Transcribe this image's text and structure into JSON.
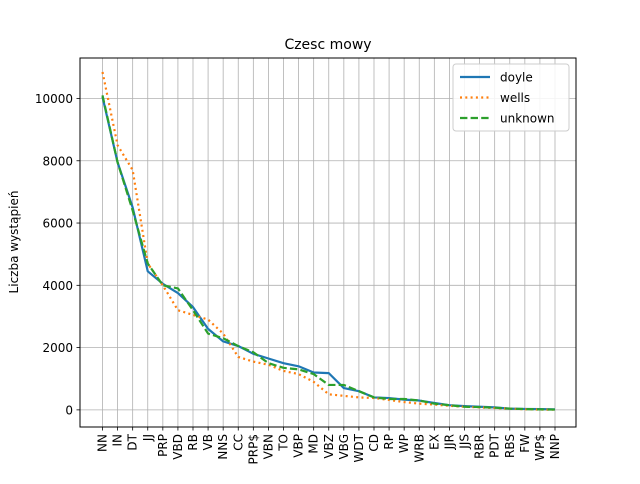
{
  "chart_data": {
    "type": "line",
    "title": "Czesc mowy",
    "xlabel": "",
    "ylabel": "Liczba wystąpień",
    "categories": [
      "NN",
      "IN",
      "DT",
      "JJ",
      "PRP",
      "VBD",
      "RB",
      "VB",
      "NNS",
      "CC",
      "PRP$",
      "VBN",
      "TO",
      "VBP",
      "MD",
      "VBZ",
      "VBG",
      "WDT",
      "CD",
      "RP",
      "WP",
      "WRB",
      "EX",
      "JJR",
      "JJS",
      "RBR",
      "PDT",
      "RBS",
      "FW",
      "WP$",
      "NNP"
    ],
    "ylim": [
      -550,
      11300
    ],
    "yticks": [
      0,
      2000,
      4000,
      6000,
      8000,
      10000
    ],
    "ytick_labels": [
      "0",
      "2000",
      "4000",
      "6000",
      "8000",
      "10000"
    ],
    "grid": true,
    "legend_position": "top-right",
    "series": [
      {
        "name": "doyle",
        "color": "#1f77b4",
        "style": "solid",
        "values": [
          10050,
          7950,
          6500,
          4450,
          4050,
          3750,
          3300,
          2600,
          2200,
          2050,
          1800,
          1650,
          1500,
          1400,
          1200,
          1180,
          700,
          600,
          400,
          380,
          330,
          300,
          220,
          150,
          120,
          100,
          80,
          40,
          30,
          25,
          15
        ]
      },
      {
        "name": "wells",
        "color": "#ff7f0e",
        "style": "dotted",
        "values": [
          10850,
          8500,
          7700,
          4700,
          4000,
          3200,
          3050,
          2900,
          2450,
          1700,
          1550,
          1450,
          1250,
          1150,
          900,
          500,
          450,
          400,
          380,
          320,
          250,
          200,
          170,
          130,
          100,
          80,
          60,
          40,
          20,
          10,
          5
        ]
      },
      {
        "name": "unknown",
        "color": "#2ca02c",
        "style": "dashed",
        "values": [
          10100,
          7950,
          6400,
          4700,
          4000,
          3900,
          3200,
          2450,
          2300,
          2050,
          1850,
          1500,
          1350,
          1300,
          1150,
          800,
          800,
          600,
          400,
          350,
          350,
          300,
          200,
          150,
          100,
          90,
          70,
          40,
          25,
          15,
          10
        ]
      }
    ]
  }
}
